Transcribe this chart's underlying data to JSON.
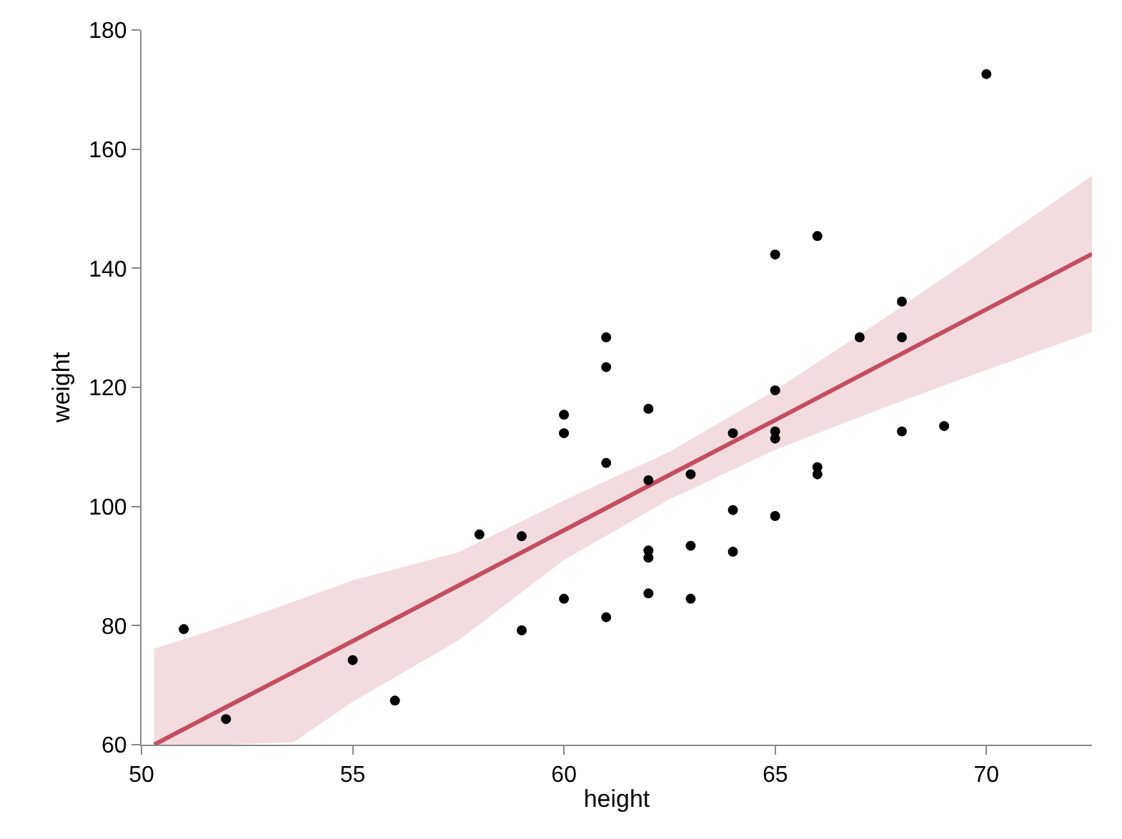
{
  "chart_data": {
    "type": "scatter",
    "xlabel": "height",
    "ylabel": "weight",
    "xlim": [
      50,
      72.5
    ],
    "ylim": [
      60,
      180
    ],
    "xticks": [
      50,
      55,
      60,
      65,
      70
    ],
    "yticks": [
      60,
      80,
      100,
      120,
      140,
      160,
      180
    ],
    "marker": "circle",
    "series": [
      {
        "type": "line",
        "color": "#c44e5f",
        "x": [
          50.3,
          52,
          53.6,
          55,
          57.5,
          60,
          62.5,
          65,
          67.5,
          70,
          72.5
        ],
        "values": [
          60,
          66.3,
          72.2,
          77.4,
          86.7,
          96.0,
          105.3,
          114.5,
          123.8,
          133.1,
          142.4
        ],
        "lower": [
          60,
          60,
          60.4,
          67.2,
          77.5,
          91.0,
          101.2,
          109.5,
          116.4,
          122.9,
          129.3
        ],
        "upper": [
          76.1,
          80.0,
          84.0,
          87.6,
          92.3,
          101.0,
          109.2,
          119.5,
          131.2,
          143.3,
          155.5
        ],
        "line_style": "solid",
        "marker": "none"
      },
      {
        "color": "#000000",
        "x": [
          51,
          52,
          55,
          56,
          58,
          59,
          59,
          60,
          60,
          60,
          61,
          61,
          61,
          61,
          62,
          62,
          62,
          62,
          62,
          63,
          63,
          63,
          64,
          64,
          64,
          65,
          65,
          65,
          65,
          65,
          66,
          66,
          66,
          67,
          68,
          68,
          68,
          69,
          70
        ],
        "values": [
          79.4,
          64.3,
          74.2,
          67.4,
          95.3,
          95,
          79.2,
          115.4,
          112.3,
          84.5,
          128.4,
          123.4,
          107.3,
          81.4,
          116.4,
          104.4,
          92.6,
          91.4,
          85.4,
          105.4,
          93.4,
          84.5,
          112.3,
          99.4,
          92.4,
          142.3,
          119.5,
          112.6,
          111.4,
          98.4,
          145.4,
          106.6,
          105.4,
          128.4,
          134.4,
          128.4,
          112.6,
          113.5,
          172.6
        ]
      }
    ]
  }
}
